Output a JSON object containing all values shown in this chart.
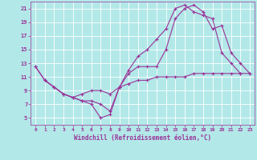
{
  "xlabel": "Windchill (Refroidissement éolien,°C)",
  "bg_color": "#b3e8e8",
  "line_color": "#993399",
  "xlim": [
    -0.5,
    23.5
  ],
  "ylim": [
    4,
    22
  ],
  "xticks": [
    0,
    1,
    2,
    3,
    4,
    5,
    6,
    7,
    8,
    9,
    10,
    11,
    12,
    13,
    14,
    15,
    16,
    17,
    18,
    19,
    20,
    21,
    22,
    23
  ],
  "yticks": [
    5,
    7,
    9,
    11,
    13,
    15,
    17,
    19,
    21
  ],
  "grid_color": "#ffffff",
  "series": [
    {
      "x": [
        0,
        1,
        2,
        3,
        4,
        5,
        6,
        7,
        8,
        9,
        10,
        11,
        12,
        13,
        14,
        15,
        16,
        17,
        18,
        19,
        20,
        21,
        22,
        23
      ],
      "y": [
        12.5,
        10.5,
        9.5,
        8.5,
        8.0,
        7.5,
        7.0,
        5.0,
        5.5,
        9.5,
        11.5,
        12.5,
        12.5,
        12.5,
        15.0,
        19.5,
        21.0,
        21.5,
        20.5,
        18.0,
        18.5,
        14.5,
        13.0,
        11.5
      ]
    },
    {
      "x": [
        0,
        1,
        2,
        3,
        4,
        5,
        6,
        7,
        8,
        9,
        10,
        11,
        12,
        13,
        14,
        15,
        16,
        17,
        18,
        19,
        20,
        21,
        22
      ],
      "y": [
        12.5,
        10.5,
        9.5,
        8.5,
        8.0,
        7.5,
        7.5,
        7.0,
        6.0,
        9.5,
        12.0,
        14.0,
        15.0,
        16.5,
        18.0,
        21.0,
        21.5,
        20.5,
        20.0,
        19.5,
        14.5,
        13.0,
        11.5
      ]
    },
    {
      "x": [
        1,
        2,
        3,
        4,
        5,
        6,
        7,
        8,
        9,
        10,
        11,
        12,
        13,
        14,
        15,
        16,
        17,
        18,
        19,
        20,
        21,
        22,
        23
      ],
      "y": [
        10.5,
        9.5,
        8.5,
        8.0,
        8.5,
        9.0,
        9.0,
        8.5,
        9.5,
        10.0,
        10.5,
        10.5,
        11.0,
        11.0,
        11.0,
        11.0,
        11.5,
        11.5,
        11.5,
        11.5,
        11.5,
        11.5,
        11.5
      ]
    }
  ]
}
